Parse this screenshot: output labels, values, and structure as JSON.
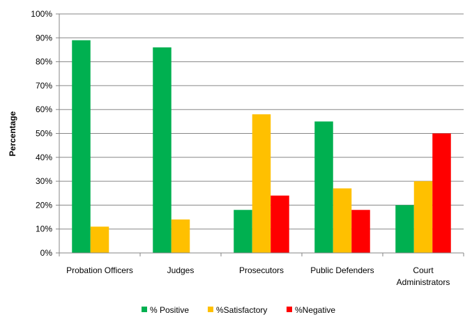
{
  "chart_data": {
    "type": "bar",
    "title": "",
    "xlabel": "",
    "ylabel": "Percentage",
    "ylim": [
      0,
      100
    ],
    "yticks": [
      0,
      10,
      20,
      30,
      40,
      50,
      60,
      70,
      80,
      90,
      100
    ],
    "ytick_suffix": "%",
    "grid": true,
    "legend_position": "bottom",
    "categories": [
      [
        "Probation Officers"
      ],
      [
        "Judges"
      ],
      [
        "Prosecutors"
      ],
      [
        "Public Defenders"
      ],
      [
        "Court",
        "Administrators"
      ]
    ],
    "series": [
      {
        "name": "% Positive",
        "color": "#00b050",
        "values": [
          89,
          86,
          18,
          55,
          20
        ]
      },
      {
        "name": "%Satisfactory",
        "color": "#ffc000",
        "values": [
          11,
          14,
          58,
          27,
          30
        ]
      },
      {
        "name": "%Negative",
        "color": "#ff0000",
        "values": [
          null,
          null,
          24,
          18,
          50
        ]
      }
    ]
  }
}
